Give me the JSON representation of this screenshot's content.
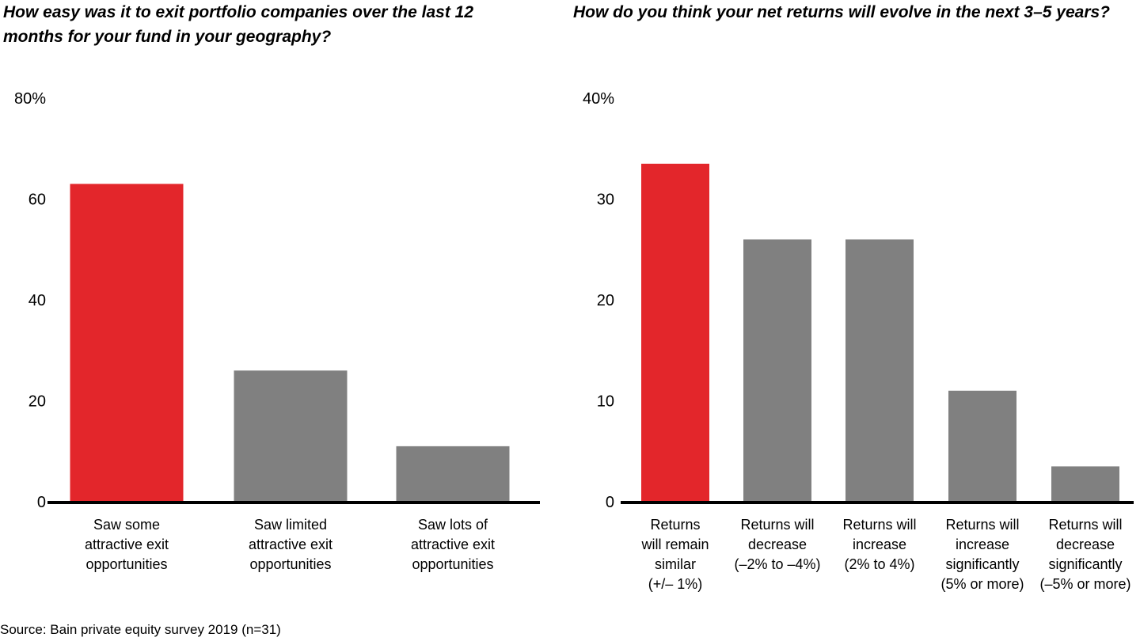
{
  "source": "Source: Bain private equity survey 2019 (n=31)",
  "colors": {
    "highlight": "#e3262b",
    "default": "#808080",
    "axis": "#000000"
  },
  "chart_data": [
    {
      "type": "bar",
      "title": "How easy was it to exit portfolio companies over the last 12 months for your fund in your geography?",
      "categories": [
        [
          "Saw some",
          "attractive exit",
          "opportunities"
        ],
        [
          "Saw limited",
          "attractive exit",
          "opportunities"
        ],
        [
          "Saw lots of",
          "attractive exit",
          "opportunities"
        ]
      ],
      "values": [
        63,
        26,
        11
      ],
      "highlight_index": 0,
      "ylim": [
        0,
        80
      ],
      "ticks": [
        "0",
        "20",
        "40",
        "60",
        "80%"
      ],
      "tick_values": [
        0,
        20,
        40,
        60,
        80
      ]
    },
    {
      "type": "bar",
      "title": "How do you think your net returns will evolve in the next 3–5 years?",
      "categories": [
        [
          "Returns",
          "will remain",
          "similar",
          "(+/– 1%)"
        ],
        [
          "Returns will",
          "decrease",
          "(–2% to –4%)"
        ],
        [
          "Returns will",
          "increase",
          "(2% to 4%)"
        ],
        [
          "Returns will",
          "increase",
          "significantly",
          "(5% or more)"
        ],
        [
          "Returns will",
          "decrease",
          "significantly",
          "(–5% or more)"
        ]
      ],
      "values": [
        33.5,
        26,
        26,
        11,
        3.5
      ],
      "highlight_index": 0,
      "ylim": [
        0,
        40
      ],
      "ticks": [
        "0",
        "10",
        "20",
        "30",
        "40%"
      ],
      "tick_values": [
        0,
        10,
        20,
        30,
        40
      ]
    }
  ]
}
